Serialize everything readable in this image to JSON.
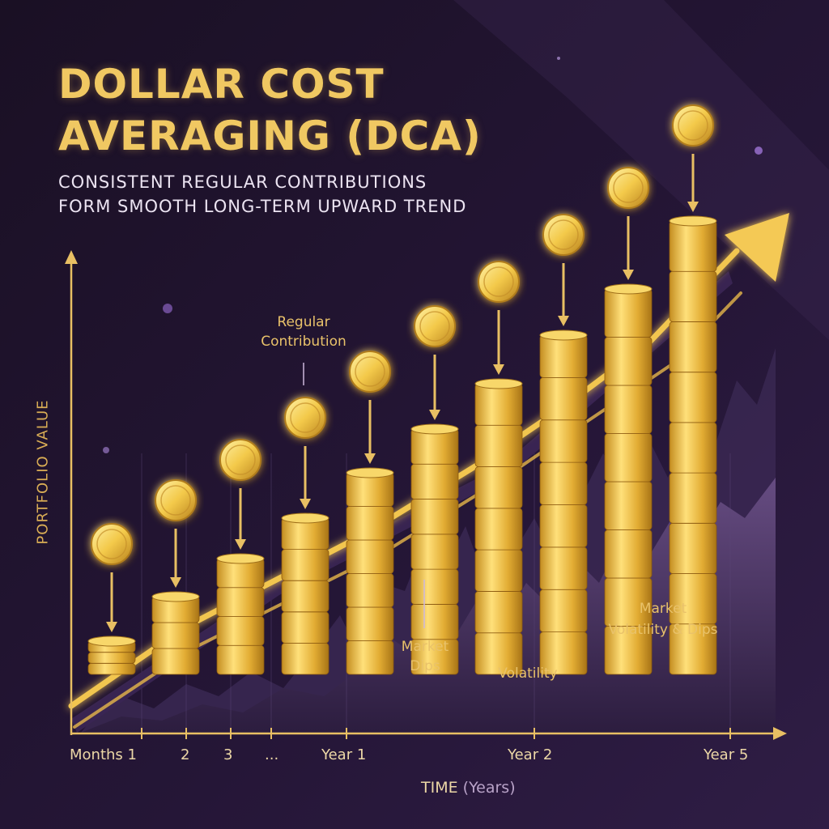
{
  "title_line1": "DOLLAR COST",
  "title_line2": "AVERAGING (DCA)",
  "subtitle_line1": "CONSISTENT REGULAR CONTRIBUTIONS",
  "subtitle_line2": "FORM SMOOTH LONG-TERM UPWARD TREND",
  "annotations": {
    "regular_line1": "Regular",
    "regular_line2": "Contribution",
    "dips_line1": "Market",
    "dips_line2": "Dips",
    "volatility": "Volatility",
    "mvd_line1": "Market",
    "mvd_line2": "Volatility & Dips"
  },
  "colors": {
    "background": "#1c1228",
    "gold": "#f0c862",
    "purple_band": "#3a2553",
    "volatility": "#5e4578"
  },
  "chart_data": {
    "type": "line",
    "title": "DOLLAR COST AVERAGING (DCA)",
    "xlabel": "TIME",
    "xlabel_unit": "(Years)",
    "ylabel": "PORTFOLIO VALUE",
    "x_ticks": [
      "Months 1",
      "2",
      "3",
      "...",
      "Year 1",
      "Year 2",
      "Year 5"
    ],
    "coin_stacks": [
      {
        "coins": 3
      },
      {
        "coins": 3
      },
      {
        "coins": 4
      },
      {
        "coins": 5
      },
      {
        "coins": 6
      },
      {
        "coins": 7
      },
      {
        "coins": 7
      },
      {
        "coins": 8
      },
      {
        "coins": 8
      },
      {
        "coins": 9
      }
    ],
    "grid": false,
    "legend": "none"
  }
}
